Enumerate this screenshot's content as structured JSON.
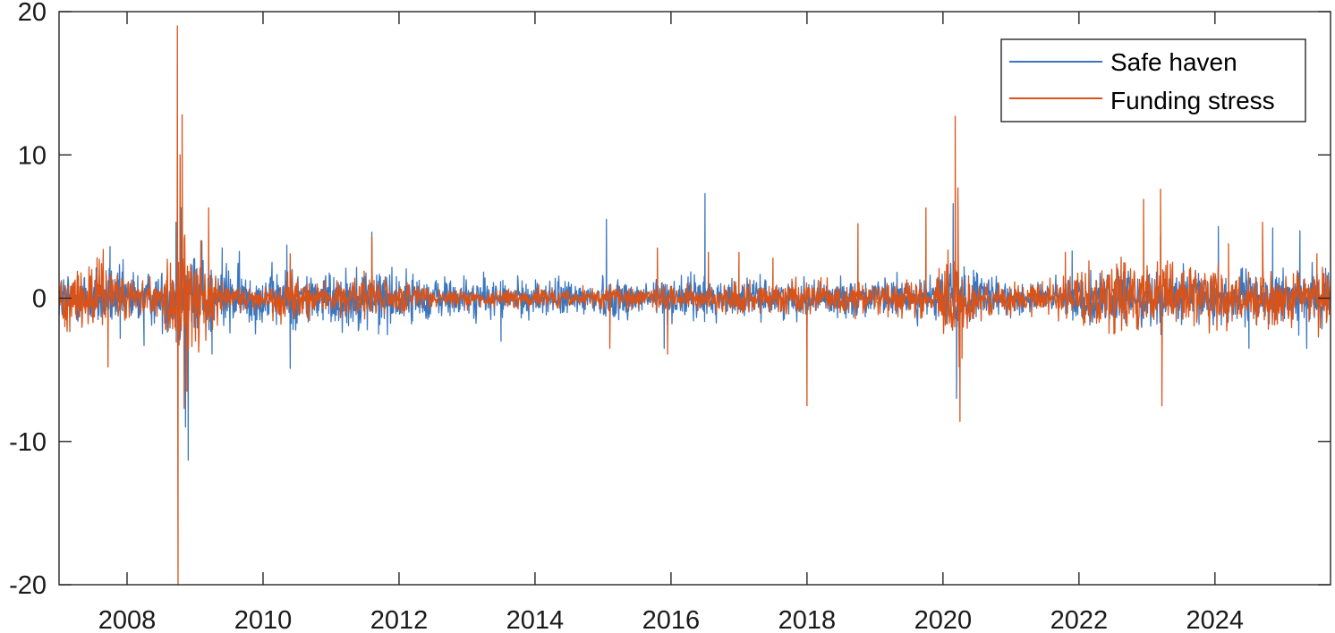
{
  "chart_data": {
    "type": "line",
    "title": "",
    "xlabel": "",
    "ylabel": "",
    "xlim": [
      2007.0,
      2025.7
    ],
    "ylim": [
      -20,
      20
    ],
    "grid": false,
    "legend_position": "top-right",
    "x_ticks": [
      2008,
      2010,
      2012,
      2014,
      2016,
      2018,
      2020,
      2022,
      2024
    ],
    "x_tick_labels": [
      "2008",
      "2010",
      "2012",
      "2014",
      "2016",
      "2018",
      "2020",
      "2022",
      "2024"
    ],
    "y_ticks": [
      -20,
      -10,
      0,
      10,
      20
    ],
    "y_tick_labels": [
      "-20",
      "-10",
      "0",
      "10",
      "20"
    ],
    "volatility_profile_x": [
      2007.0,
      2007.5,
      2008.0,
      2008.5,
      2008.7,
      2009.0,
      2009.4,
      2010.0,
      2010.4,
      2010.8,
      2011.6,
      2012.2,
      2013.0,
      2014.0,
      2015.0,
      2016.0,
      2016.5,
      2017.0,
      2018.0,
      2019.0,
      2019.9,
      2020.2,
      2020.4,
      2020.8,
      2021.5,
      2022.0,
      2022.5,
      2023.0,
      2023.5,
      2024.0,
      2024.5,
      2025.0,
      2025.7
    ],
    "series": [
      {
        "name": "Safe haven",
        "color": "#3a76bf",
        "volatility_profile": [
          0.9,
          1.0,
          1.0,
          0.9,
          1.6,
          1.5,
          1.2,
          0.9,
          1.0,
          0.9,
          1.1,
          0.8,
          0.7,
          0.6,
          0.7,
          0.7,
          0.8,
          0.6,
          0.6,
          0.6,
          0.7,
          1.4,
          0.9,
          0.6,
          0.5,
          0.8,
          0.9,
          0.9,
          0.9,
          0.9,
          0.9,
          0.9,
          0.9
        ],
        "spikes": [
          {
            "x": 2007.75,
            "y": 3.6
          },
          {
            "x": 2007.9,
            "y": -2.8
          },
          {
            "x": 2008.25,
            "y": -3.3
          },
          {
            "x": 2008.72,
            "y": 5.3
          },
          {
            "x": 2008.8,
            "y": 6.3
          },
          {
            "x": 2008.86,
            "y": -9.0
          },
          {
            "x": 2008.9,
            "y": -11.3
          },
          {
            "x": 2009.1,
            "y": 4.0
          },
          {
            "x": 2009.25,
            "y": -3.9
          },
          {
            "x": 2009.4,
            "y": 3.5
          },
          {
            "x": 2010.35,
            "y": 3.7
          },
          {
            "x": 2010.4,
            "y": -4.9
          },
          {
            "x": 2011.6,
            "y": 4.6
          },
          {
            "x": 2011.7,
            "y": -2.5
          },
          {
            "x": 2013.5,
            "y": -3.0
          },
          {
            "x": 2015.05,
            "y": 5.5
          },
          {
            "x": 2015.9,
            "y": -3.5
          },
          {
            "x": 2016.5,
            "y": 7.3
          },
          {
            "x": 2018.0,
            "y": -2.3
          },
          {
            "x": 2020.15,
            "y": 6.6
          },
          {
            "x": 2020.2,
            "y": -7.0
          },
          {
            "x": 2021.9,
            "y": 3.3
          },
          {
            "x": 2023.2,
            "y": 4.3
          },
          {
            "x": 2024.05,
            "y": 5.0
          },
          {
            "x": 2024.5,
            "y": -3.5
          },
          {
            "x": 2024.85,
            "y": 4.9
          },
          {
            "x": 2025.25,
            "y": 4.7
          },
          {
            "x": 2025.35,
            "y": -3.5
          }
        ]
      },
      {
        "name": "Funding stress",
        "color": "#d95319",
        "volatility_profile": [
          0.9,
          1.3,
          0.9,
          0.5,
          2.4,
          1.7,
          0.6,
          0.4,
          1.0,
          0.4,
          1.0,
          0.4,
          0.3,
          0.3,
          0.35,
          0.4,
          0.5,
          0.5,
          0.6,
          0.6,
          0.6,
          2.0,
          0.8,
          0.5,
          0.5,
          0.9,
          1.1,
          1.3,
          1.0,
          1.1,
          1.0,
          0.9,
          0.9
        ],
        "spikes": [
          {
            "x": 2007.65,
            "y": 3.4
          },
          {
            "x": 2007.72,
            "y": -4.8
          },
          {
            "x": 2008.74,
            "y": 19.0
          },
          {
            "x": 2008.75,
            "y": -20.0
          },
          {
            "x": 2008.78,
            "y": 10.0
          },
          {
            "x": 2008.81,
            "y": 12.8
          },
          {
            "x": 2008.84,
            "y": -7.7
          },
          {
            "x": 2008.88,
            "y": -6.5
          },
          {
            "x": 2009.2,
            "y": 6.3
          },
          {
            "x": 2010.4,
            "y": 3.1
          },
          {
            "x": 2011.6,
            "y": 4.3
          },
          {
            "x": 2015.1,
            "y": -3.5
          },
          {
            "x": 2015.8,
            "y": 3.5
          },
          {
            "x": 2015.95,
            "y": -3.9
          },
          {
            "x": 2016.55,
            "y": 3.2
          },
          {
            "x": 2017.0,
            "y": 3.2
          },
          {
            "x": 2017.5,
            "y": 2.8
          },
          {
            "x": 2018.0,
            "y": -7.5
          },
          {
            "x": 2018.75,
            "y": 5.2
          },
          {
            "x": 2019.75,
            "y": 6.3
          },
          {
            "x": 2020.18,
            "y": 12.7
          },
          {
            "x": 2020.22,
            "y": 7.7
          },
          {
            "x": 2020.25,
            "y": -8.6
          },
          {
            "x": 2020.28,
            "y": -4.2
          },
          {
            "x": 2021.8,
            "y": 3.2
          },
          {
            "x": 2022.95,
            "y": 6.9
          },
          {
            "x": 2023.2,
            "y": 7.6
          },
          {
            "x": 2023.22,
            "y": -7.5
          },
          {
            "x": 2023.3,
            "y": 2.6
          },
          {
            "x": 2024.2,
            "y": 3.8
          },
          {
            "x": 2024.7,
            "y": 5.3
          },
          {
            "x": 2025.5,
            "y": 3.1
          }
        ]
      }
    ]
  }
}
